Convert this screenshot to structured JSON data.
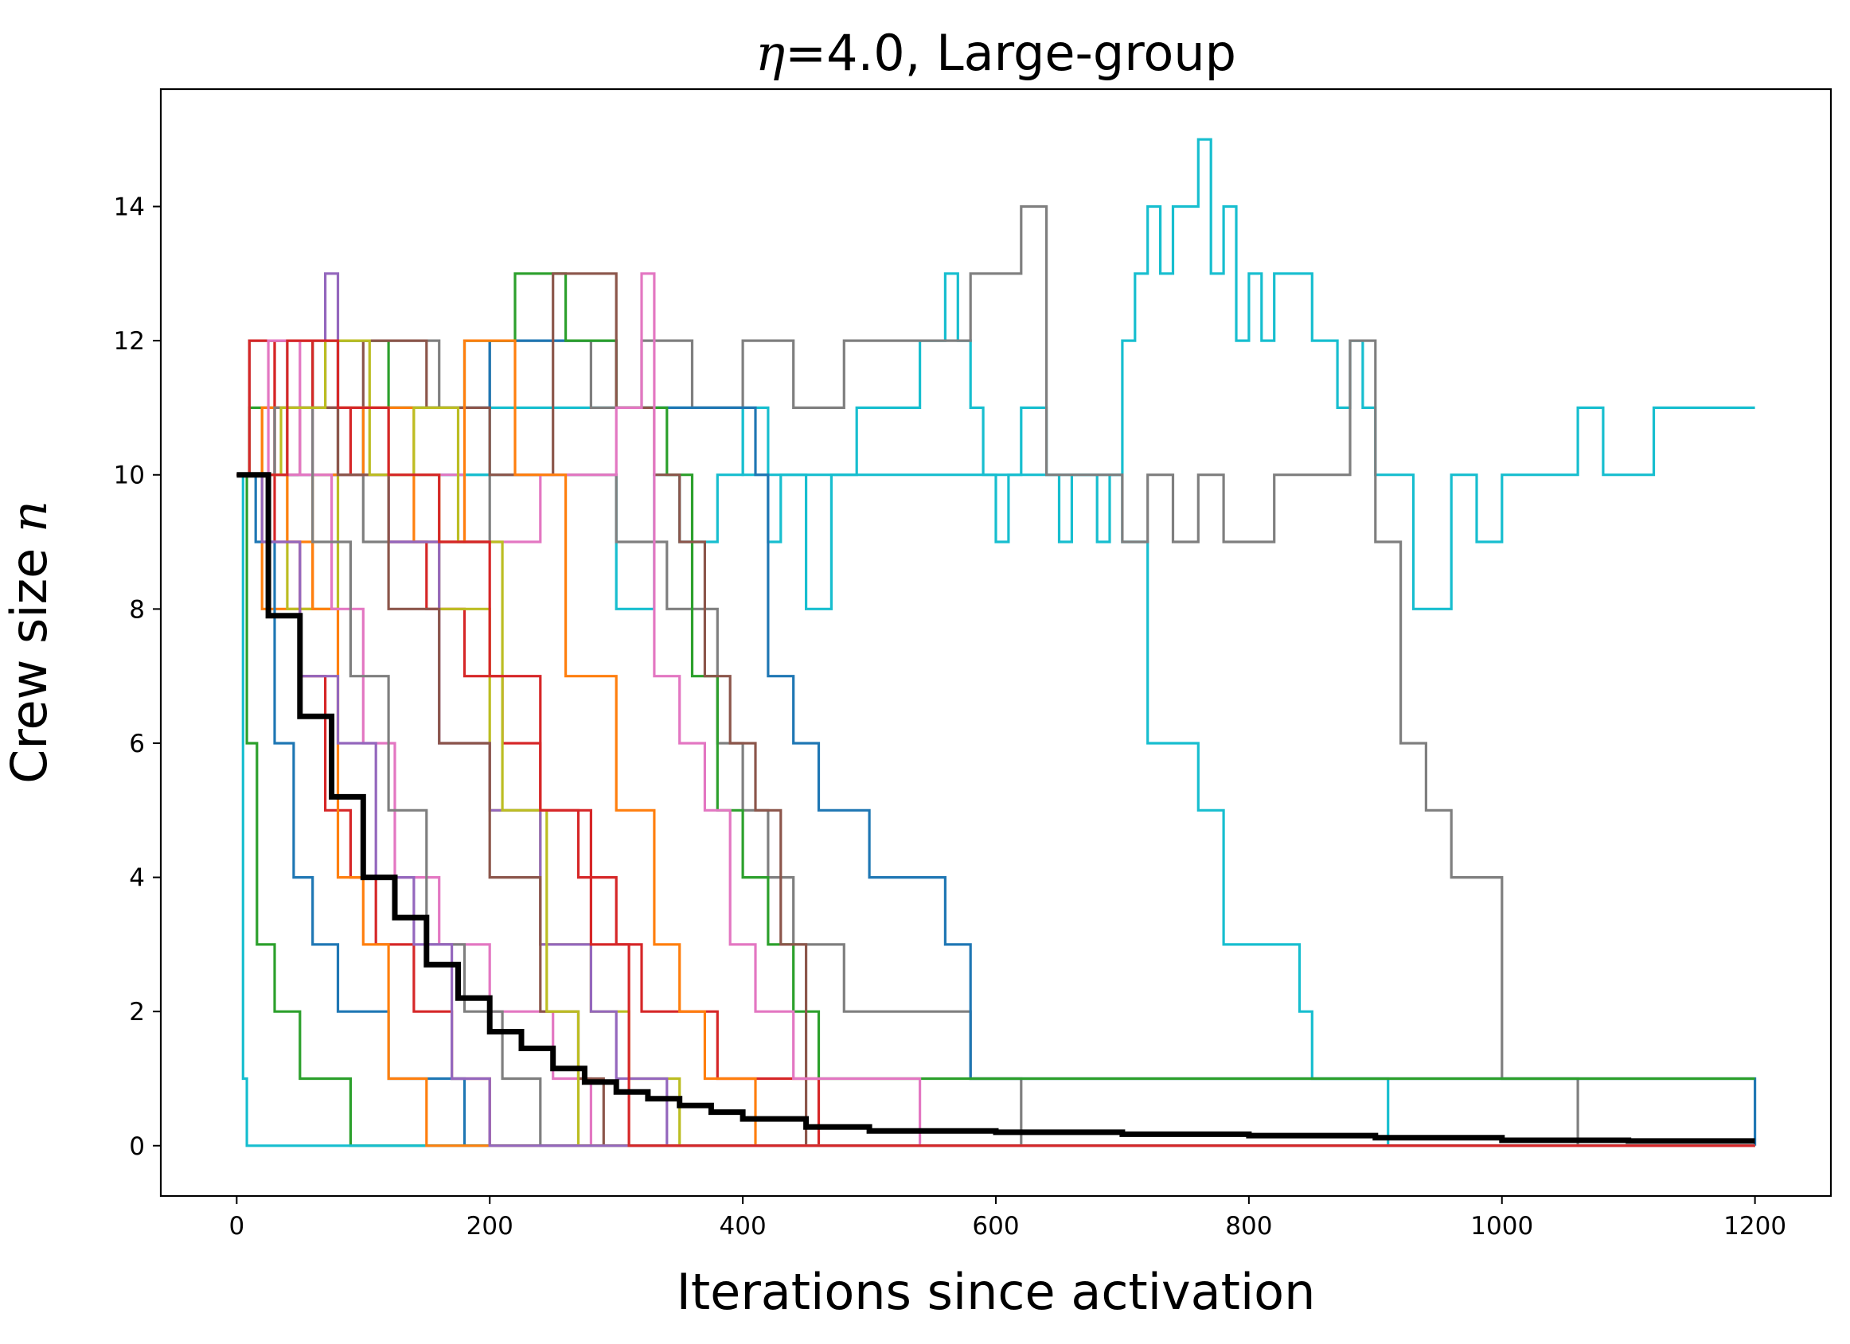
{
  "chart_data": {
    "type": "line",
    "title": {
      "symbol": "η",
      "equals": "=",
      "value": "4.0",
      "rest": ", Large-group"
    },
    "xlabel": "Iterations since activation",
    "ylabel": {
      "text": "Crew size ",
      "symbol": "n"
    },
    "xlim": [
      -60,
      1260
    ],
    "ylim": [
      -0.75,
      15.75
    ],
    "xticks": [
      0,
      200,
      400,
      600,
      800,
      1000,
      1200
    ],
    "yticks": [
      0,
      2,
      4,
      6,
      8,
      10,
      12,
      14
    ],
    "grid": false,
    "legend": "none",
    "series": [
      {
        "color": "#17becf",
        "x": [
          0,
          5,
          25,
          60,
          130,
          200,
          290,
          300,
          330,
          350,
          380,
          400,
          420,
          430,
          450,
          470,
          490,
          540,
          560,
          570,
          580,
          590,
          600,
          610,
          620,
          640,
          650,
          660,
          680,
          690,
          700,
          710,
          720,
          730,
          740,
          760,
          770,
          780,
          790,
          800,
          810,
          820,
          840,
          850,
          860,
          870,
          880,
          890,
          900,
          910,
          920,
          930,
          940,
          960,
          980,
          1000,
          1020,
          1040,
          1060,
          1080,
          1100,
          1120,
          1140,
          1160,
          1180,
          1200
        ],
        "y": [
          10,
          10,
          10,
          10,
          10,
          10,
          10,
          8,
          10,
          9,
          10,
          11,
          9,
          10,
          8,
          10,
          11,
          12,
          13,
          12,
          11,
          10,
          9,
          10,
          11,
          10,
          9,
          10,
          9,
          10,
          12,
          13,
          14,
          13,
          14,
          15,
          13,
          14,
          12,
          13,
          12,
          13,
          13,
          12,
          12,
          11,
          12,
          11,
          10,
          10,
          10,
          8,
          8,
          10,
          9,
          10,
          10,
          10,
          11,
          10,
          10,
          11,
          11,
          11,
          11,
          11
        ]
      },
      {
        "color": "#17becf",
        "x": [
          0,
          100,
          200,
          300,
          400,
          500,
          560,
          600,
          640,
          680,
          700,
          720,
          740,
          760,
          780,
          800,
          820,
          840,
          850,
          860,
          880,
          900,
          910,
          1000,
          1100,
          1200
        ],
        "y": [
          10,
          10,
          11,
          11,
          10,
          10,
          10,
          10,
          10,
          10,
          9,
          6,
          6,
          5,
          3,
          3,
          3,
          2,
          1,
          1,
          1,
          1,
          0,
          0,
          0,
          0
        ]
      },
      {
        "color": "#7f7f7f",
        "x": [
          0,
          10,
          40,
          80,
          120,
          160,
          200,
          240,
          280,
          320,
          360,
          400,
          440,
          480,
          520,
          560,
          580,
          600,
          620,
          640,
          660,
          680,
          700,
          720,
          740,
          760,
          780,
          800,
          820,
          840,
          860,
          880,
          900,
          920,
          940,
          960,
          980,
          1000,
          1020,
          1040,
          1060,
          1080,
          1100,
          1200
        ],
        "y": [
          10,
          12,
          11,
          12,
          12,
          11,
          12,
          12,
          11,
          12,
          11,
          12,
          11,
          12,
          12,
          12,
          13,
          13,
          14,
          10,
          10,
          10,
          9,
          10,
          9,
          10,
          9,
          9,
          10,
          10,
          10,
          12,
          9,
          6,
          5,
          4,
          4,
          1,
          1,
          1,
          0,
          0,
          0,
          0
        ]
      },
      {
        "color": "#7f7f7f",
        "x": [
          0,
          100,
          200,
          300,
          340,
          380,
          400,
          420,
          440,
          460,
          480,
          500,
          520,
          540,
          560,
          580,
          600,
          620,
          1200
        ],
        "y": [
          10,
          9,
          10,
          9,
          8,
          6,
          5,
          4,
          3,
          3,
          2,
          2,
          2,
          2,
          2,
          1,
          1,
          0,
          0
        ]
      },
      {
        "color": "#1f77b4",
        "x": [
          0,
          100,
          200,
          300,
          400,
          410,
          420,
          440,
          460,
          480,
          500,
          520,
          540,
          560,
          580,
          600,
          700,
          800,
          820,
          1200
        ],
        "y": [
          10,
          11,
          12,
          11,
          11,
          10,
          7,
          6,
          5,
          5,
          4,
          4,
          4,
          3,
          1,
          1,
          1,
          1,
          1,
          0
        ]
      },
      {
        "color": "#2ca02c",
        "x": [
          0,
          10,
          60,
          120,
          180,
          220,
          260,
          300,
          340,
          360,
          380,
          400,
          420,
          440,
          460,
          480,
          500,
          520,
          1200
        ],
        "y": [
          10,
          11,
          12,
          11,
          12,
          13,
          12,
          11,
          10,
          7,
          5,
          4,
          3,
          2,
          1,
          1,
          1,
          1,
          1
        ]
      },
      {
        "color": "#8c564b",
        "x": [
          0,
          50,
          100,
          150,
          200,
          250,
          300,
          330,
          350,
          370,
          390,
          410,
          430,
          450,
          1200
        ],
        "y": [
          10,
          11,
          12,
          11,
          10,
          13,
          11,
          10,
          9,
          7,
          6,
          5,
          3,
          0,
          0
        ]
      },
      {
        "color": "#d62728",
        "x": [
          0,
          30,
          60,
          90,
          120,
          150,
          180,
          210,
          240,
          270,
          300,
          320,
          340,
          360,
          380,
          400,
          430,
          460,
          1200
        ],
        "y": [
          10,
          12,
          11,
          10,
          9,
          8,
          7,
          6,
          5,
          4,
          3,
          2,
          2,
          2,
          1,
          1,
          1,
          0,
          0
        ]
      },
      {
        "color": "#e377c2",
        "x": [
          0,
          60,
          120,
          180,
          240,
          300,
          320,
          330,
          350,
          370,
          390,
          410,
          420,
          440,
          460,
          500,
          520,
          540,
          1200
        ],
        "y": [
          10,
          11,
          10,
          9,
          10,
          11,
          13,
          7,
          6,
          5,
          3,
          2,
          2,
          1,
          1,
          1,
          1,
          0,
          0
        ]
      },
      {
        "color": "#ff7f0e",
        "x": [
          0,
          20,
          60,
          100,
          140,
          180,
          220,
          260,
          300,
          330,
          350,
          370,
          390,
          410,
          430,
          1200
        ],
        "y": [
          10,
          8,
          10,
          11,
          9,
          12,
          10,
          7,
          5,
          3,
          2,
          1,
          1,
          0,
          0,
          0
        ]
      },
      {
        "color": "#bcbd22",
        "x": [
          0,
          20,
          40,
          80,
          120,
          160,
          200,
          240,
          280,
          310,
          330,
          350,
          380,
          1200
        ],
        "y": [
          10,
          11,
          8,
          11,
          10,
          8,
          5,
          3,
          2,
          1,
          1,
          0,
          0,
          0
        ]
      },
      {
        "color": "#9467bd",
        "x": [
          0,
          30,
          70,
          80,
          120,
          160,
          200,
          240,
          280,
          300,
          320,
          340,
          1200
        ],
        "y": [
          10,
          11,
          13,
          10,
          9,
          6,
          5,
          3,
          2,
          1,
          1,
          0,
          0
        ]
      },
      {
        "color": "#d62728",
        "x": [
          0,
          10,
          30,
          50,
          70,
          90,
          110,
          140,
          170,
          200,
          240,
          1200
        ],
        "y": [
          10,
          12,
          9,
          7,
          5,
          4,
          3,
          2,
          1,
          0,
          0,
          0
        ]
      },
      {
        "color": "#1f77b4",
        "x": [
          0,
          15,
          30,
          45,
          60,
          80,
          100,
          120,
          150,
          180,
          1200
        ],
        "y": [
          10,
          9,
          6,
          4,
          3,
          2,
          2,
          1,
          1,
          0,
          0
        ]
      },
      {
        "color": "#2ca02c",
        "x": [
          0,
          8,
          16,
          30,
          50,
          70,
          90,
          120,
          1200
        ],
        "y": [
          10,
          6,
          3,
          2,
          1,
          1,
          0,
          0,
          0
        ]
      },
      {
        "color": "#17becf",
        "x": [
          0,
          5,
          8,
          1200
        ],
        "y": [
          10,
          1,
          0,
          0
        ]
      },
      {
        "color": "#ff7f0e",
        "x": [
          0,
          20,
          40,
          60,
          80,
          100,
          120,
          150,
          1200
        ],
        "y": [
          10,
          11,
          9,
          8,
          4,
          3,
          1,
          0,
          0
        ]
      },
      {
        "color": "#e377c2",
        "x": [
          0,
          25,
          50,
          75,
          100,
          125,
          160,
          200,
          250,
          280,
          1200
        ],
        "y": [
          10,
          12,
          10,
          8,
          6,
          4,
          3,
          2,
          1,
          0,
          0
        ]
      },
      {
        "color": "#8c564b",
        "x": [
          0,
          40,
          80,
          120,
          160,
          200,
          240,
          270,
          290,
          1200
        ],
        "y": [
          10,
          11,
          10,
          8,
          6,
          4,
          2,
          1,
          0,
          0
        ]
      },
      {
        "color": "#7f7f7f",
        "x": [
          0,
          30,
          60,
          90,
          120,
          150,
          180,
          210,
          240,
          1200
        ],
        "y": [
          10,
          11,
          9,
          7,
          5,
          3,
          2,
          1,
          0,
          0
        ]
      },
      {
        "color": "#bcbd22",
        "x": [
          0,
          35,
          70,
          105,
          140,
          175,
          210,
          245,
          270,
          1200
        ],
        "y": [
          10,
          11,
          12,
          10,
          11,
          9,
          5,
          2,
          0,
          0
        ]
      },
      {
        "color": "#9467bd",
        "x": [
          0,
          20,
          50,
          80,
          110,
          140,
          170,
          200,
          1200
        ],
        "y": [
          10,
          9,
          7,
          6,
          4,
          3,
          1,
          0,
          0
        ]
      },
      {
        "color": "#d62728",
        "x": [
          0,
          40,
          80,
          120,
          160,
          200,
          240,
          280,
          310,
          1200
        ],
        "y": [
          10,
          12,
          11,
          10,
          9,
          7,
          5,
          3,
          0,
          0
        ]
      },
      {
        "color": "#000000",
        "width": 7,
        "x": [
          0,
          25,
          50,
          75,
          100,
          125,
          150,
          175,
          200,
          225,
          250,
          275,
          300,
          325,
          350,
          375,
          400,
          450,
          500,
          600,
          700,
          800,
          900,
          1000,
          1100,
          1200
        ],
        "y": [
          10,
          7.9,
          6.4,
          5.2,
          4.0,
          3.4,
          2.7,
          2.2,
          1.7,
          1.45,
          1.15,
          0.95,
          0.8,
          0.7,
          0.6,
          0.5,
          0.4,
          0.28,
          0.22,
          0.2,
          0.17,
          0.15,
          0.12,
          0.08,
          0.07,
          0.07
        ]
      }
    ]
  }
}
